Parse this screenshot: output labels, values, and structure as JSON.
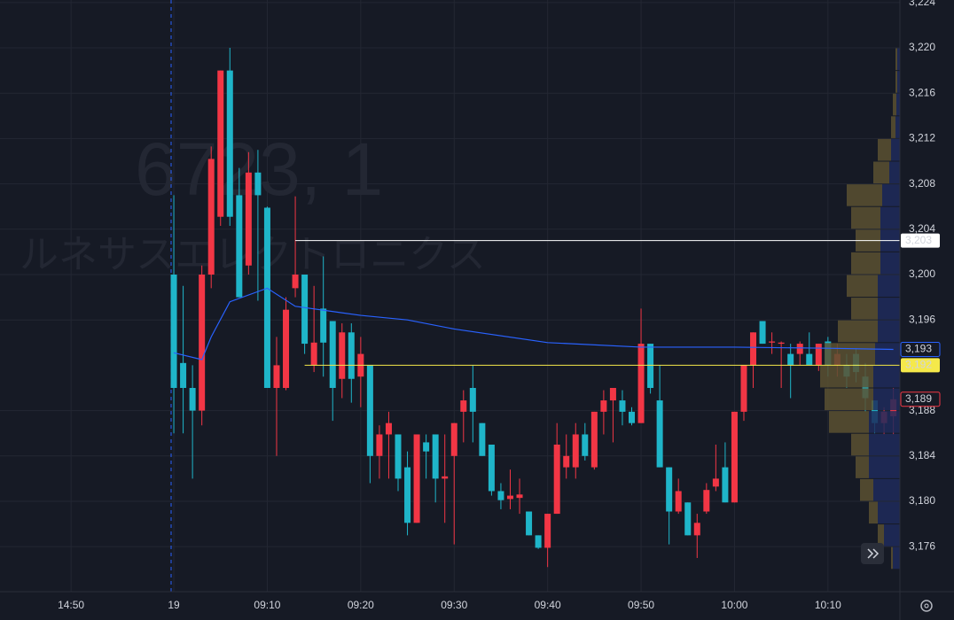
{
  "chart_data": {
    "type": "candlestick",
    "watermark": [
      "6723, 1",
      "ルネサスエレクトロニクス"
    ],
    "up_color": "#f23645",
    "down_color": "#1fb5c9",
    "x": [
      0,
      1,
      2,
      3,
      4,
      5,
      6,
      7,
      8,
      9,
      10,
      11,
      12,
      13,
      14,
      15,
      16,
      17,
      18,
      19,
      20,
      21,
      22,
      23,
      24,
      25,
      26,
      27,
      28,
      29,
      30,
      31,
      32,
      33,
      34,
      35,
      36,
      37,
      38,
      39,
      40,
      41,
      42,
      43,
      44,
      45,
      46,
      47,
      48,
      49,
      50,
      51,
      52,
      53,
      54,
      55,
      56,
      57,
      58,
      59,
      60,
      61,
      62,
      63,
      64,
      65,
      66,
      67,
      68,
      69,
      70,
      71,
      72,
      73,
      74,
      75,
      76,
      77
    ],
    "open": [
      3200,
      3192.2,
      3190,
      3188,
      3200,
      3205.1,
      3218,
      3207,
      3200.8,
      3209,
      3205.9,
      3190,
      3190,
      3198.8,
      3200,
      3192,
      3197,
      3195.9,
      3190.8,
      3194.9,
      3191,
      3192,
      3184,
      3185.9,
      3185.9,
      3183,
      3178.1,
      3185.2,
      3185.9,
      3182,
      3184,
      3187.9,
      3190,
      3186.9,
      3185,
      3180.9,
      3180.2,
      3180.3,
      3179.1,
      3177,
      3175.9,
      3178.9,
      3183,
      3183,
      3185.9,
      3183,
      3187.9,
      3188.9,
      3188.9,
      3187.9,
      3186.9,
      3193.9,
      3188.9,
      3183,
      3179.1,
      3179.9,
      3177,
      3179.1,
      3181.3,
      3183,
      3179.9,
      3187.9,
      3192,
      3195.9,
      3194,
      3193.9,
      3193,
      3193,
      3193,
      3192,
      3194.1,
      3192,
      3192,
      3193,
      3191,
      3188.9,
      3186.9,
      3187.5
    ],
    "high": [
      3207,
      3199,
      3192,
      3200.8,
      3211.3,
      3218,
      3220,
      3209.4,
      3210.8,
      3211,
      3206,
      3194.5,
      3198,
      3206.9,
      3200,
      3199,
      3201.6,
      3195.9,
      3195.7,
      3195.7,
      3194.5,
      3192,
      3186.7,
      3187.9,
      3185.9,
      3184.4,
      3185.9,
      3185.9,
      3185.9,
      3185.9,
      3186.9,
      3189.8,
      3192,
      3186.9,
      3185,
      3181.6,
      3182.8,
      3182,
      3179.1,
      3177,
      3178.9,
      3186.9,
      3185.9,
      3186.9,
      3186.9,
      3187.9,
      3189.8,
      3190,
      3189.8,
      3188.3,
      3197,
      3193.9,
      3192,
      3183,
      3182,
      3179.9,
      3178.9,
      3181.6,
      3185,
      3185.2,
      3187.9,
      3192,
      3194.9,
      3195.9,
      3194.9,
      3194.1,
      3193.9,
      3194.1,
      3194.9,
      3193.9,
      3194.5,
      3193.9,
      3193,
      3193.5,
      3192.2,
      3188.9,
      3188.3,
      3190
    ],
    "low": [
      3186,
      3186,
      3182,
      3186.7,
      3198.8,
      3204.3,
      3204.3,
      3198,
      3200,
      3197.7,
      3190,
      3184,
      3189.8,
      3198,
      3193,
      3191.4,
      3191,
      3187.1,
      3189.1,
      3188.7,
      3188.3,
      3181.6,
      3182,
      3182,
      3180.9,
      3177,
      3178.1,
      3182,
      3179.9,
      3178.1,
      3176.2,
      3185.2,
      3185.2,
      3184,
      3180.5,
      3179.3,
      3179.3,
      3178.9,
      3177,
      3175.8,
      3174.2,
      3178.9,
      3182,
      3182,
      3183.6,
      3182.8,
      3185.9,
      3185.2,
      3186.7,
      3186.7,
      3186.9,
      3189.5,
      3183,
      3176.2,
      3178.9,
      3177,
      3175,
      3178.9,
      3180.9,
      3179.9,
      3179.9,
      3187.1,
      3190,
      3193.9,
      3193,
      3190,
      3189.1,
      3192,
      3192,
      3191.5,
      3191,
      3191,
      3190,
      3190.5,
      3187.9,
      3186,
      3185.9,
      3185.9
    ],
    "close": [
      3190,
      3190,
      3188,
      3200,
      3210.2,
      3218,
      3205.1,
      3198,
      3209,
      3207,
      3190,
      3192,
      3196.9,
      3200,
      3193.9,
      3194,
      3194,
      3190,
      3194.9,
      3190.8,
      3193,
      3184,
      3185.9,
      3186.9,
      3182,
      3178.1,
      3185.9,
      3184.4,
      3182,
      3182.2,
      3186.9,
      3188.9,
      3187.9,
      3184,
      3180.9,
      3180.1,
      3180.5,
      3180.6,
      3177,
      3175.9,
      3178.9,
      3185,
      3184,
      3185.9,
      3184,
      3187.9,
      3188.9,
      3190,
      3187.9,
      3186.9,
      3193.9,
      3190,
      3183,
      3179.1,
      3180.9,
      3177,
      3178.1,
      3181,
      3182,
      3179.9,
      3187.9,
      3192,
      3194.9,
      3193.9,
      3194.1,
      3194,
      3192,
      3193.9,
      3192,
      3193.9,
      3192,
      3193,
      3191,
      3191.4,
      3189.1,
      3186.9,
      3187.9,
      3189
    ],
    "last_label": "3,189",
    "vwap": {
      "color": "#2962ff",
      "x": [
        0,
        3,
        4,
        6,
        10,
        13,
        20,
        25,
        30,
        40,
        50,
        60,
        70,
        77
      ],
      "values": [
        3193.1,
        3192.5,
        3194.5,
        3197.6,
        3198.8,
        3197.2,
        3196.4,
        3196,
        3195.2,
        3194,
        3193.6,
        3193.6,
        3193.5,
        3193.4
      ],
      "label": "3,193"
    },
    "levels": [
      {
        "value": 3203,
        "label": "3,203",
        "color": "#ffffff",
        "from": 13
      },
      {
        "value": 3192,
        "label": "3,192",
        "color": "#f5e94a",
        "from": 14
      }
    ],
    "volume_profile": {
      "up_color": "#5b5131",
      "down_color": "#1f2b5c",
      "step": 2,
      "levels": [
        3218,
        3216,
        3214,
        3212,
        3210,
        3208,
        3206,
        3204,
        3202,
        3200,
        3198,
        3196,
        3194,
        3192,
        3190,
        3188,
        3186,
        3184,
        3182,
        3180,
        3178,
        3176,
        3174
      ],
      "up": [
        2,
        2,
        4,
        5,
        15,
        18,
        40,
        33,
        28,
        33,
        35,
        30,
        45,
        57,
        60,
        55,
        45,
        20,
        15,
        15,
        10,
        7,
        2
      ],
      "down": [
        3,
        3,
        4,
        5,
        10,
        12,
        20,
        22,
        22,
        22,
        25,
        25,
        25,
        28,
        30,
        30,
        35,
        35,
        35,
        30,
        25,
        18,
        8
      ]
    },
    "ylim": [
      3172.03,
      3224.22
    ],
    "yticks": [
      {
        "value": 3224,
        "label": "3,224"
      },
      {
        "value": 3220,
        "label": "3,220"
      },
      {
        "value": 3216,
        "label": "3,216"
      },
      {
        "value": 3212,
        "label": "3,212"
      },
      {
        "value": 3208,
        "label": "3,208"
      },
      {
        "value": 3204,
        "label": "3,204"
      },
      {
        "value": 3200,
        "label": "3,200"
      },
      {
        "value": 3196,
        "label": "3,196"
      },
      {
        "value": 3188,
        "label": "3,188"
      },
      {
        "value": 3184,
        "label": "3,184"
      },
      {
        "value": 3180,
        "label": "3,180"
      },
      {
        "value": 3176,
        "label": "3,176"
      }
    ],
    "xlim": [
      -18.6,
      77.7
    ],
    "xticks": [
      {
        "value": -11,
        "label": "14:50"
      },
      {
        "value": 0,
        "label": "19"
      },
      {
        "value": 10,
        "label": "09:10"
      },
      {
        "value": 20,
        "label": "09:20"
      },
      {
        "value": 30,
        "label": "09:30"
      },
      {
        "value": 40,
        "label": "09:40"
      },
      {
        "value": 50,
        "label": "09:50"
      },
      {
        "value": 60,
        "label": "10:00"
      },
      {
        "value": 70,
        "label": "10:10"
      }
    ],
    "grid": true
  }
}
